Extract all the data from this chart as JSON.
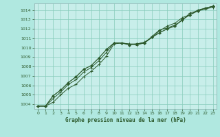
{
  "xlabel": "Graphe pression niveau de la mer (hPa)",
  "background_color": "#b0e8e0",
  "plot_bg_color": "#c8eeea",
  "grid_color": "#88ccbb",
  "line_color": "#2d5a2d",
  "spine_color": "#88aaaa",
  "xlim": [
    -0.5,
    23.5
  ],
  "ylim": [
    1003.5,
    1014.7
  ],
  "yticks": [
    1004,
    1005,
    1006,
    1007,
    1008,
    1009,
    1010,
    1011,
    1012,
    1013,
    1014
  ],
  "xticks": [
    0,
    1,
    2,
    3,
    4,
    5,
    6,
    7,
    8,
    9,
    10,
    11,
    12,
    13,
    14,
    15,
    16,
    17,
    18,
    19,
    20,
    21,
    22,
    23
  ],
  "series1_x": [
    0,
    1,
    2,
    3,
    4,
    5,
    6,
    7,
    8,
    9,
    10,
    11,
    12,
    13,
    14,
    15,
    16,
    17,
    18,
    19,
    20,
    21,
    22,
    23
  ],
  "series1_y": [
    1003.8,
    1003.8,
    1004.2,
    1005.0,
    1005.7,
    1006.1,
    1006.9,
    1007.5,
    1008.2,
    1009.1,
    1010.4,
    1010.5,
    1010.4,
    1010.3,
    1010.5,
    1011.2,
    1011.9,
    1012.1,
    1012.4,
    1012.9,
    1013.7,
    1013.9,
    1014.1,
    1014.3
  ],
  "series2_x": [
    0,
    1,
    2,
    3,
    4,
    5,
    6,
    7,
    8,
    9,
    10,
    11,
    12,
    13,
    14,
    15,
    16,
    17,
    18,
    19,
    20,
    21,
    22,
    23
  ],
  "series2_y": [
    1003.8,
    1003.8,
    1004.6,
    1005.3,
    1006.1,
    1006.6,
    1007.4,
    1007.9,
    1008.6,
    1009.5,
    1010.5,
    1010.5,
    1010.4,
    1010.4,
    1010.6,
    1011.1,
    1011.8,
    1012.3,
    1012.6,
    1013.2,
    1013.5,
    1014.0,
    1014.2,
    1014.4
  ],
  "series3_x": [
    0,
    1,
    2,
    3,
    4,
    5,
    6,
    7,
    8,
    9,
    10,
    11,
    12,
    13,
    14,
    15,
    16,
    17,
    18,
    19,
    20,
    21,
    22,
    23
  ],
  "series3_y": [
    1003.8,
    1003.8,
    1004.9,
    1005.5,
    1006.3,
    1006.9,
    1007.7,
    1008.1,
    1008.9,
    1009.8,
    1010.5,
    1010.5,
    1010.3,
    1010.4,
    1010.5,
    1011.1,
    1011.6,
    1012.0,
    1012.3,
    1013.0,
    1013.5,
    1013.9,
    1014.2,
    1014.4
  ]
}
